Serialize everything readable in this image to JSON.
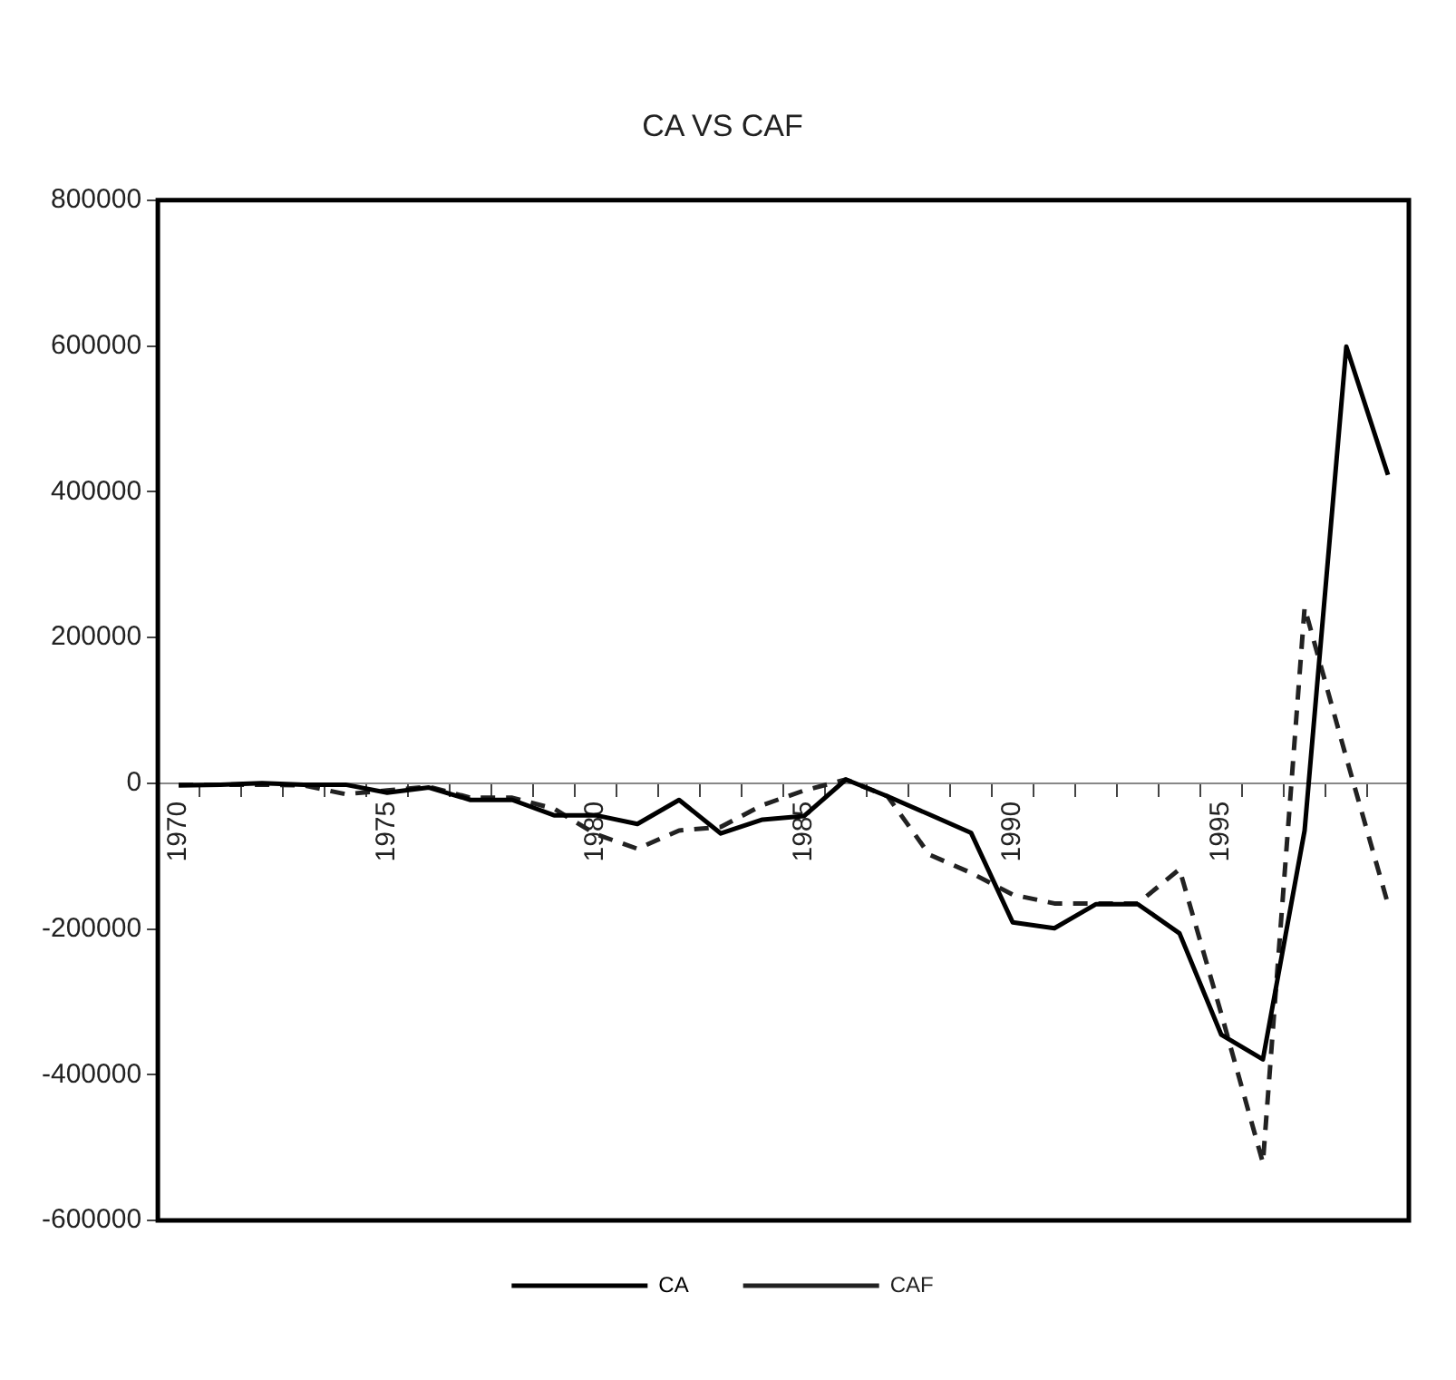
{
  "chart_data": {
    "type": "line",
    "title": "CA VS CAF",
    "categories": [
      "1970",
      null,
      null,
      null,
      null,
      "1975",
      null,
      null,
      null,
      null,
      "1980",
      null,
      null,
      null,
      null,
      "1985",
      null,
      null,
      null,
      null,
      "1990",
      null,
      null,
      null,
      null,
      "1995",
      null,
      null,
      null,
      null
    ],
    "series": [
      {
        "name": "CA",
        "color": "#000000",
        "line_style": "solid",
        "values": [
          -3000,
          -2000,
          0,
          -2000,
          -2000,
          -13000,
          -6000,
          -23000,
          -23000,
          -44000,
          -44000,
          -56000,
          -23000,
          -69000,
          -50000,
          -45000,
          5000,
          -18000,
          -43000,
          -68000,
          -191000,
          -199000,
          -166000,
          -166000,
          -206000,
          -345000,
          -379000,
          -65000,
          599000,
          423000
        ]
      },
      {
        "name": "CAF",
        "color": "#222222",
        "line_style": "dashed",
        "values": [
          -2000,
          -2000,
          -2000,
          -3000,
          -15000,
          -10000,
          -5000,
          -20000,
          -20000,
          -35000,
          -70000,
          -90000,
          -65000,
          -60000,
          -30000,
          -10000,
          5000,
          -18000,
          -98000,
          -123000,
          -153000,
          -165000,
          -165000,
          -165000,
          -118000,
          -316000,
          -521000,
          241000,
          35000,
          -166000
        ]
      }
    ],
    "ylim": [
      -600000,
      800000
    ],
    "yticks": [
      -600000,
      -400000,
      -200000,
      0,
      200000,
      400000,
      600000,
      800000
    ],
    "grid": false,
    "legend": "bottom",
    "marker": "none"
  }
}
